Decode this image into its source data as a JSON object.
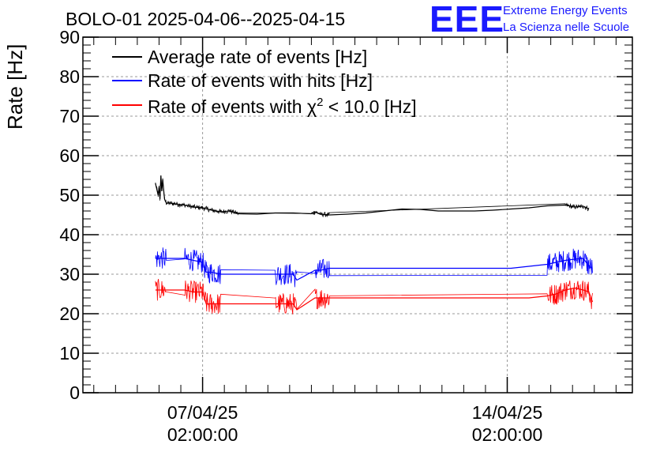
{
  "chart_data": {
    "type": "line",
    "title": "BOLO-01 2025-04-06--2025-04-15",
    "ylabel": "Rate [Hz]",
    "xlabel": "",
    "ylim": [
      0,
      90
    ],
    "y_ticks": [
      0,
      10,
      20,
      30,
      40,
      50,
      60,
      70,
      80,
      90
    ],
    "x_range_hours": [
      -66,
      237
    ],
    "x_ticks": [
      {
        "hours": 0,
        "date": "07/04/25",
        "time": "02:00:00"
      },
      {
        "hours": 168,
        "date": "14/04/25",
        "time": "02:00:00"
      }
    ],
    "grid": true,
    "legend_position": "top-left",
    "series": [
      {
        "name": "Average rate of events [Hz]",
        "color": "#000000",
        "noise": 0.6,
        "x": [
          -26,
          -24.5,
          -24,
          -23.5,
          -23,
          -22.5,
          -22,
          -21,
          -20,
          -19,
          -18,
          -15,
          -10,
          -5,
          0,
          5,
          10,
          15,
          20,
          30,
          40,
          50,
          60,
          62,
          65,
          70,
          80,
          90,
          100,
          110,
          120,
          130,
          140,
          150,
          160,
          170,
          180,
          190,
          200,
          205,
          210,
          213
        ],
        "y": [
          53,
          50,
          52,
          49,
          55,
          51,
          54,
          49,
          48,
          48,
          48,
          47.8,
          47.5,
          47,
          46.8,
          46.2,
          45.8,
          46,
          45.3,
          45.2,
          45.5,
          45.5,
          45.3,
          45.8,
          45.2,
          45,
          45.2,
          45.5,
          46,
          46.5,
          46.4,
          46,
          46,
          46,
          46.2,
          46.5,
          46.8,
          47.3,
          47.5,
          47,
          47.2,
          46.5
        ]
      },
      {
        "name": "Rate of events with hits [Hz]",
        "color": "#0000ff",
        "noise": 2.8,
        "x": [
          -26,
          -20,
          -10,
          -5,
          0,
          2,
          5,
          10,
          20,
          30,
          40,
          48,
          50,
          52,
          62,
          65,
          70,
          80,
          90,
          100,
          110,
          120,
          130,
          140,
          150,
          160,
          170,
          180,
          190,
          195,
          200,
          205,
          210,
          213,
          215
        ],
        "y": [
          34,
          34,
          34,
          33.5,
          33,
          30.5,
          30.5,
          30,
          30,
          30,
          30,
          30,
          30,
          28.5,
          31,
          31,
          31.5,
          31.5,
          31.5,
          31.5,
          31.5,
          31.5,
          31.5,
          31.5,
          31.5,
          31.5,
          31.5,
          32,
          32.5,
          33,
          33.5,
          33.8,
          34,
          32,
          31.5
        ]
      },
      {
        "name": "Rate of events with χ² < 10.0 [Hz]",
        "color": "#ff0000",
        "noise": 2.8,
        "x": [
          -26,
          -20,
          -10,
          -5,
          0,
          2,
          5,
          10,
          20,
          30,
          40,
          48,
          50,
          52,
          62,
          65,
          70,
          80,
          90,
          100,
          110,
          120,
          130,
          140,
          150,
          160,
          170,
          180,
          190,
          195,
          200,
          205,
          210,
          213,
          215
        ],
        "y": [
          26,
          26,
          26,
          25.5,
          25.5,
          22.5,
          22.5,
          22.5,
          22.5,
          22.5,
          22.5,
          22.5,
          22.5,
          21,
          24,
          24,
          24,
          24,
          24,
          24,
          24,
          24,
          24,
          24,
          24,
          24,
          24,
          24,
          24.5,
          25,
          26,
          26.5,
          26,
          25.5,
          23
        ]
      }
    ]
  },
  "legend": {
    "chi_prefix": "Rate of events with χ",
    "chi_sup": "2",
    "chi_suffix": " < 10.0 [Hz]"
  },
  "logo": {
    "mark": "EEE",
    "line1": "Extreme Energy Events",
    "line2": "La Scienza nelle Scuole",
    "color": "#1a1aff"
  }
}
